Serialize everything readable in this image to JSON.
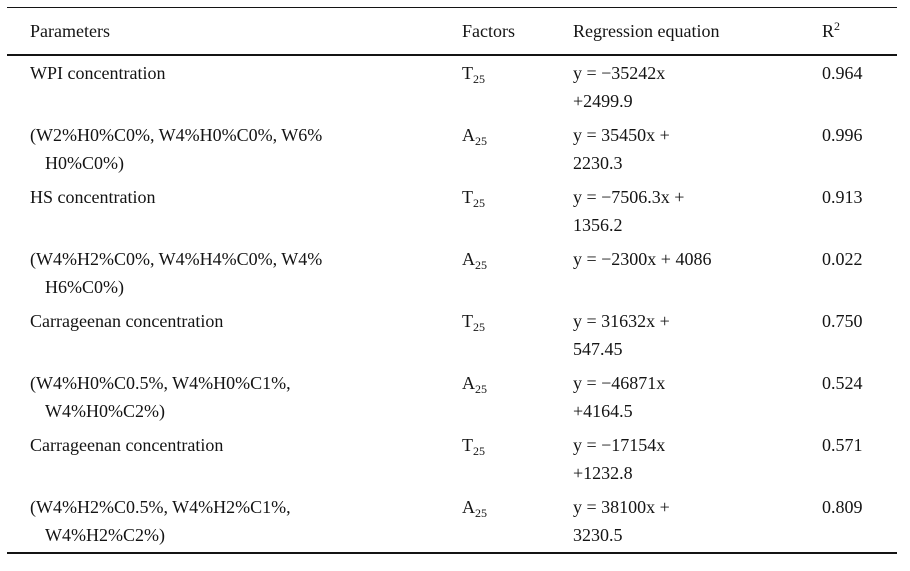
{
  "table": {
    "headers": {
      "parameters": "Parameters",
      "factors": "Factors",
      "equation": "Regression equation",
      "r2_base": "R",
      "r2_sup": "2"
    },
    "rows": [
      {
        "param_lines": [
          "WPI concentration"
        ],
        "factor_base": "T",
        "factor_sub": "25",
        "eq_lines": [
          "y = −35242x",
          "+2499.9"
        ],
        "r2": "0.964"
      },
      {
        "param_lines": [
          "(W2%H0%C0%, W4%H0%C0%, W6%",
          "H0%C0%)"
        ],
        "factor_base": "A",
        "factor_sub": "25",
        "eq_lines": [
          "y = 35450x +",
          "2230.3"
        ],
        "r2": "0.996"
      },
      {
        "param_lines": [
          "HS concentration"
        ],
        "factor_base": "T",
        "factor_sub": "25",
        "eq_lines": [
          "y = −7506.3x +",
          "1356.2"
        ],
        "r2": "0.913"
      },
      {
        "param_lines": [
          "(W4%H2%C0%, W4%H4%C0%, W4%",
          "H6%C0%)"
        ],
        "factor_base": "A",
        "factor_sub": "25",
        "eq_lines": [
          "y = −2300x + 4086"
        ],
        "r2": "0.022"
      },
      {
        "param_lines": [
          "Carrageenan concentration"
        ],
        "factor_base": "T",
        "factor_sub": "25",
        "eq_lines": [
          "y = 31632x +",
          "547.45"
        ],
        "r2": "0.750"
      },
      {
        "param_lines": [
          "(W4%H0%C0.5%, W4%H0%C1%,",
          "W4%H0%C2%)"
        ],
        "factor_base": "A",
        "factor_sub": "25",
        "eq_lines": [
          "y = −46871x",
          "+4164.5"
        ],
        "r2": "0.524"
      },
      {
        "param_lines": [
          "Carrageenan concentration"
        ],
        "factor_base": "T",
        "factor_sub": "25",
        "eq_lines": [
          "y = −17154x",
          "+1232.8"
        ],
        "r2": "0.571"
      },
      {
        "param_lines": [
          "(W4%H2%C0.5%, W4%H2%C1%,",
          "W4%H2%C2%)"
        ],
        "factor_base": "A",
        "factor_sub": "25",
        "eq_lines": [
          "y = 38100x +",
          "3230.5"
        ],
        "r2": "0.809"
      }
    ]
  },
  "colors": {
    "background": "#ffffff",
    "text": "#141414",
    "rule": "#141414"
  }
}
